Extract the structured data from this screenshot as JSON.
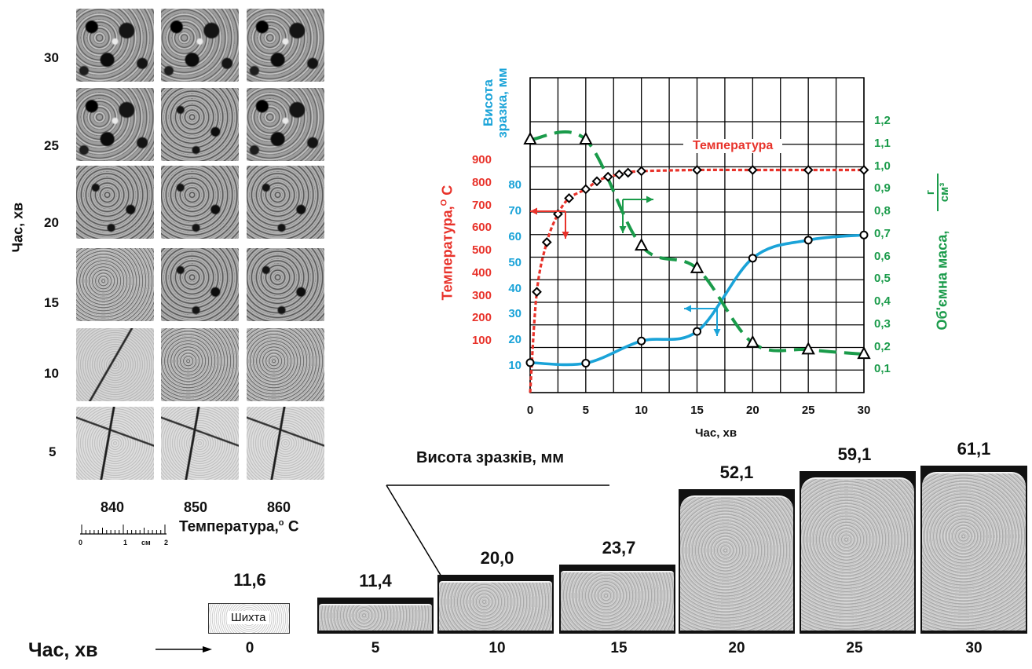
{
  "grid": {
    "row_labels": [
      "30",
      "25",
      "20",
      "15",
      "10",
      "5"
    ],
    "col_labels": [
      "840",
      "850",
      "860"
    ],
    "axis_label": "Час, хв",
    "temperature_label": "Температура,",
    "temperature_unit": "C",
    "degree_sign": "o",
    "scale_bar": {
      "ticks": [
        "0",
        "1",
        "см",
        "2"
      ]
    }
  },
  "chart_data": {
    "type": "line",
    "x_label": "Час, хв",
    "x_ticks": [
      "0",
      "5",
      "10",
      "15",
      "20",
      "25",
      "30"
    ],
    "xlim": [
      0,
      30
    ],
    "left_axis_temperature": {
      "label": "Температура,",
      "unit": "С",
      "degree_sign": "О",
      "ticks": [
        "100",
        "200",
        "300",
        "400",
        "500",
        "600",
        "700",
        "800",
        "900"
      ],
      "color": "#e8322a"
    },
    "left_axis_height": {
      "label_line1": "Висота",
      "label_line2": "зразка, мм",
      "ticks": [
        "10",
        "20",
        "30",
        "40",
        "50",
        "60",
        "70",
        "80"
      ],
      "color": "#1aa3d8"
    },
    "right_axis_density": {
      "label": "Об'ємна маса,",
      "unit_num": "г",
      "unit_den": "см³",
      "ticks": [
        "0,1",
        "0,2",
        "0,3",
        "0,4",
        "0,5",
        "0,6",
        "0,7",
        "0,8",
        "0,9",
        "1,0",
        "1,1",
        "1,2"
      ],
      "color": "#1a9b4a"
    },
    "series": [
      {
        "name": "Температура",
        "color": "#e8322a",
        "marker": "diamond",
        "x": [
          0,
          0.6,
          1.5,
          2.5,
          3.5,
          5,
          6,
          7,
          8,
          8.8,
          10,
          15,
          20,
          25,
          30
        ],
        "y": [
          0,
          320,
          540,
          665,
          735,
          775,
          810,
          830,
          840,
          848,
          855,
          860,
          860,
          860,
          860
        ]
      },
      {
        "color": "#1aa3d8",
        "marker": "circle",
        "x": [
          0,
          5,
          10,
          15,
          20,
          25,
          30
        ],
        "y": [
          11.6,
          11.4,
          20.0,
          23.7,
          52.1,
          59.1,
          61.1
        ]
      },
      {
        "color": "#1a9b4a",
        "marker": "triangle",
        "x": [
          0,
          5,
          10,
          15,
          20,
          25,
          30
        ],
        "y": [
          1.12,
          1.12,
          0.65,
          0.55,
          0.22,
          0.19,
          0.17
        ]
      }
    ]
  },
  "specimens": {
    "caption": "Висота зразків, мм",
    "time_label": "Час, хв",
    "charge_label": "Шихта",
    "items": [
      {
        "time": "0",
        "height": "11,6",
        "h_mm": 11.6
      },
      {
        "time": "5",
        "height": "11,4",
        "h_mm": 11.4
      },
      {
        "time": "10",
        "height": "20,0",
        "h_mm": 20.0
      },
      {
        "time": "15",
        "height": "23,7",
        "h_mm": 23.7
      },
      {
        "time": "20",
        "height": "52,1",
        "h_mm": 52.1
      },
      {
        "time": "25",
        "height": "59,1",
        "h_mm": 59.1
      },
      {
        "time": "30",
        "height": "61,1",
        "h_mm": 61.1
      }
    ]
  }
}
